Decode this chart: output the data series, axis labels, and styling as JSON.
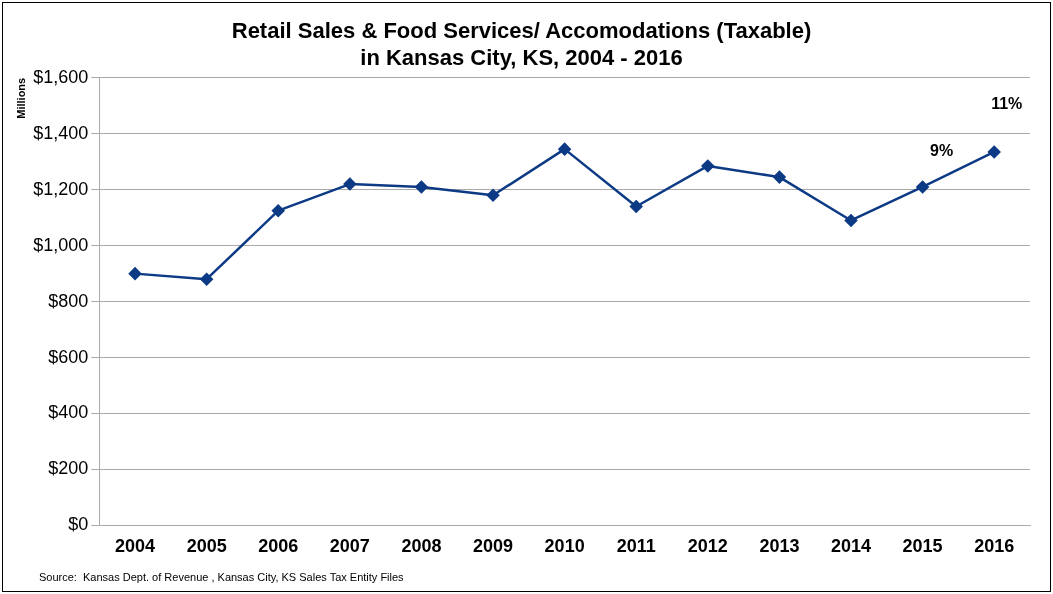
{
  "chart_data": {
    "type": "line",
    "title": "Retail Sales & Food Services/ Accomodations (Taxable)\nin Kansas City, KS, 2004 - 2016",
    "ylabel": "Millions",
    "categories": [
      "2004",
      "2005",
      "2006",
      "2007",
      "2008",
      "2009",
      "2010",
      "2011",
      "2012",
      "2013",
      "2014",
      "2015",
      "2016"
    ],
    "series": [
      {
        "color": "#0d3a85",
        "values": [
          900,
          880,
          1125,
          1220,
          1210,
          1180,
          1345,
          1140,
          1285,
          1245,
          1090,
          1210,
          1335
        ]
      }
    ],
    "ylim": [
      0,
      1600
    ],
    "yticks": [
      {
        "value": 0,
        "label": "$0"
      },
      {
        "value": 200,
        "label": "$200"
      },
      {
        "value": 400,
        "label": "$400"
      },
      {
        "value": 600,
        "label": "$600"
      },
      {
        "value": 800,
        "label": "$800"
      },
      {
        "value": 1000,
        "label": "$1,000"
      },
      {
        "value": 1200,
        "label": "$1,200"
      },
      {
        "value": 1400,
        "label": "$1,400"
      },
      {
        "value": 1600,
        "label": "$1,600"
      }
    ],
    "grid": "y",
    "legend": false,
    "marker": "diamond",
    "line_style": "solid",
    "annotations": [
      "9%",
      "11%",
      "Source:  Kansas Dept. of Revenue , Kansas City, KS Sales Tax Entity Files"
    ]
  }
}
